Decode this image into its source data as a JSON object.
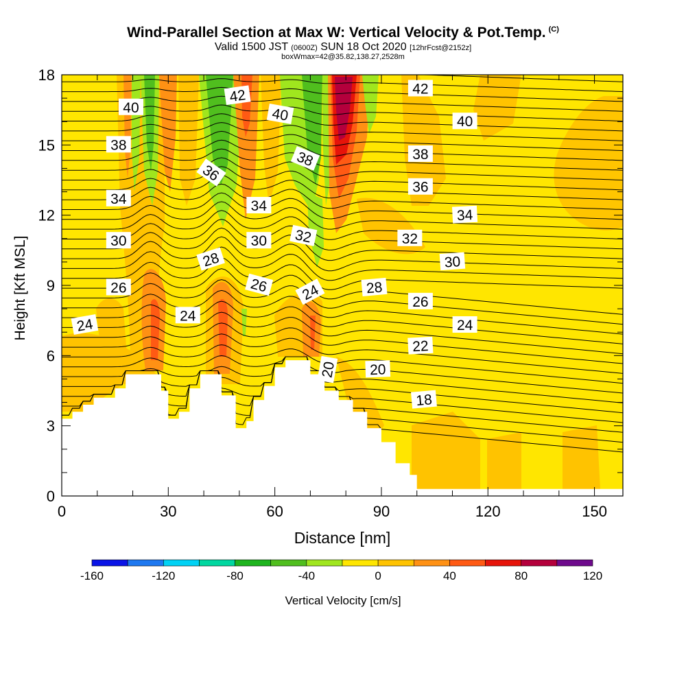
{
  "title": {
    "main": "Wind-Parallel Section at Max W: Vertical Velocity & Pot.Temp.",
    "copyright": "(C)",
    "valid_prefix": "Valid 1500 JST",
    "valid_z": "(0600Z)",
    "valid_date": "SUN 18 Oct 2020",
    "forecast": "[12hrFcst@2152z]",
    "box": "boxWmax=42@35.82,138.27,2528m"
  },
  "chart_data": {
    "type": "heatmap",
    "xlabel": "Distance [nm]",
    "ylabel": "Height [Kft MSL]",
    "xlim": [
      0,
      158
    ],
    "ylim": [
      0,
      18
    ],
    "xticks": [
      0,
      30,
      60,
      90,
      120,
      150
    ],
    "yticks": [
      0,
      3,
      6,
      9,
      12,
      15,
      18
    ],
    "colorbar": {
      "label": "Vertical Velocity [cm/s]",
      "ticks": [
        -160,
        -120,
        -80,
        -40,
        0,
        40,
        80,
        120
      ],
      "bounds": [
        -160,
        -140,
        -120,
        -100,
        -80,
        -60,
        -40,
        -20,
        0,
        20,
        40,
        60,
        80,
        100,
        120
      ],
      "colors": [
        "#0a14e6",
        "#1e78f0",
        "#00d2f5",
        "#00d7a0",
        "#1eb41e",
        "#50be1e",
        "#a0e61e",
        "#ffe600",
        "#ffc300",
        "#ff9114",
        "#ff5a14",
        "#e6140a",
        "#b4003c",
        "#6e0a8c"
      ]
    },
    "terrain_kft": [
      [
        0,
        3.3
      ],
      [
        3,
        3.6
      ],
      [
        6,
        3.9
      ],
      [
        9,
        4.2
      ],
      [
        15,
        4.6
      ],
      [
        18,
        5.2
      ],
      [
        26,
        5.2
      ],
      [
        28,
        4.5
      ],
      [
        30,
        3.3
      ],
      [
        33,
        3.6
      ],
      [
        36,
        4.6
      ],
      [
        39,
        5.2
      ],
      [
        43,
        5.2
      ],
      [
        45,
        4.3
      ],
      [
        48,
        4.3
      ],
      [
        49,
        2.9
      ],
      [
        52,
        3.2
      ],
      [
        54,
        4.1
      ],
      [
        57,
        4.7
      ],
      [
        60,
        5.5
      ],
      [
        63,
        5.8
      ],
      [
        66,
        5.8
      ],
      [
        70,
        5.2
      ],
      [
        74,
        4.5
      ],
      [
        78,
        4.1
      ],
      [
        82,
        3.6
      ],
      [
        86,
        2.9
      ],
      [
        90,
        2.3
      ],
      [
        94,
        1.4
      ],
      [
        98,
        0.9
      ],
      [
        100,
        0.3
      ],
      [
        158,
        0.3
      ]
    ],
    "isentrope_labels": [
      {
        "text": "42",
        "x": 49.5,
        "y": 17.1,
        "rot": -8
      },
      {
        "text": "42",
        "x": 101,
        "y": 17.4,
        "rot": 0
      },
      {
        "text": "40",
        "x": 19.5,
        "y": 16.6,
        "rot": 0
      },
      {
        "text": "40",
        "x": 61.5,
        "y": 16.3,
        "rot": 10
      },
      {
        "text": "40",
        "x": 113.5,
        "y": 16.0,
        "rot": 0
      },
      {
        "text": "38",
        "x": 16,
        "y": 15.0,
        "rot": 0
      },
      {
        "text": "38",
        "x": 68.5,
        "y": 14.4,
        "rot": 22
      },
      {
        "text": "38",
        "x": 101,
        "y": 14.6,
        "rot": 0
      },
      {
        "text": "36",
        "x": 42,
        "y": 13.8,
        "rot": 35
      },
      {
        "text": "36",
        "x": 101,
        "y": 13.2,
        "rot": 0
      },
      {
        "text": "34",
        "x": 16,
        "y": 12.7,
        "rot": 0
      },
      {
        "text": "34",
        "x": 55.5,
        "y": 12.4,
        "rot": 0
      },
      {
        "text": "34",
        "x": 113.5,
        "y": 12.0,
        "rot": -3
      },
      {
        "text": "32",
        "x": 68,
        "y": 11.1,
        "rot": 12
      },
      {
        "text": "32",
        "x": 98,
        "y": 11.0,
        "rot": 0
      },
      {
        "text": "30",
        "x": 16,
        "y": 10.9,
        "rot": 0
      },
      {
        "text": "30",
        "x": 55.5,
        "y": 10.9,
        "rot": 0
      },
      {
        "text": "30",
        "x": 110,
        "y": 10.0,
        "rot": -4
      },
      {
        "text": "28",
        "x": 42,
        "y": 10.1,
        "rot": -18
      },
      {
        "text": "28",
        "x": 88,
        "y": 8.9,
        "rot": -5
      },
      {
        "text": "26",
        "x": 16,
        "y": 8.9,
        "rot": 0
      },
      {
        "text": "26",
        "x": 55.5,
        "y": 9.0,
        "rot": 15
      },
      {
        "text": "26",
        "x": 101,
        "y": 8.3,
        "rot": 0
      },
      {
        "text": "24",
        "x": 6.5,
        "y": 7.3,
        "rot": -10
      },
      {
        "text": "24",
        "x": 35.5,
        "y": 7.7,
        "rot": 0
      },
      {
        "text": "24",
        "x": 70,
        "y": 8.7,
        "rot": -28
      },
      {
        "text": "24",
        "x": 113.5,
        "y": 7.3,
        "rot": 0
      },
      {
        "text": "22",
        "x": 101,
        "y": 6.4,
        "rot": -3
      },
      {
        "text": "20",
        "x": 75,
        "y": 5.4,
        "rot": -80
      },
      {
        "text": "20",
        "x": 89,
        "y": 5.4,
        "rot": -2
      },
      {
        "text": "18",
        "x": 102,
        "y": 4.1,
        "rot": -5
      }
    ]
  }
}
